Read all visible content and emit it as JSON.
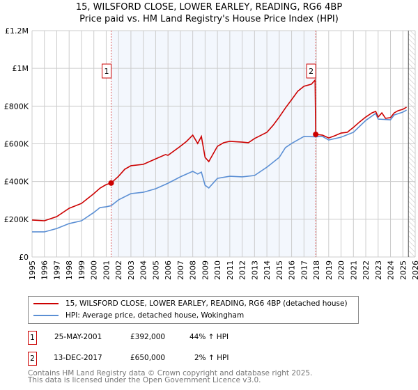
{
  "chart_data": {
    "type": "line",
    "title": "15, WILSFORD CLOSE, LOWER EARLEY, READING, RG6 4BP",
    "subtitle": "Price paid vs. HM Land Registry's House Price Index (HPI)",
    "xlim": [
      1995,
      2026
    ],
    "ylim": [
      0,
      1200000
    ],
    "x_ticks": [
      "1995",
      "1996",
      "1997",
      "1998",
      "1999",
      "2000",
      "2001",
      "2002",
      "2003",
      "2004",
      "2005",
      "2006",
      "2007",
      "2008",
      "2009",
      "2010",
      "2011",
      "2012",
      "2013",
      "2014",
      "2015",
      "2016",
      "2017",
      "2018",
      "2019",
      "2020",
      "2021",
      "2022",
      "2023",
      "2024",
      "2025",
      "2026"
    ],
    "y_ticks": [
      {
        "v": 0,
        "label": "£0"
      },
      {
        "v": 200000,
        "label": "£200K"
      },
      {
        "v": 400000,
        "label": "£400K"
      },
      {
        "v": 600000,
        "label": "£600K"
      },
      {
        "v": 800000,
        "label": "£800K"
      },
      {
        "v": 1000000,
        "label": "£1M"
      },
      {
        "v": 1200000,
        "label": "£1.2M"
      }
    ],
    "grid": true,
    "shaded_range": [
      2001.4,
      2017.95
    ],
    "hatched_from": 2025.45,
    "series": [
      {
        "name": "15, WILSFORD CLOSE, LOWER EARLEY, READING, RG6 4BP (detached house)",
        "color": "#cc0000",
        "x": [
          1995,
          1996,
          1997,
          1998,
          1999,
          2000,
          2000.5,
          2001,
          2001.4,
          2002,
          2002.5,
          2003,
          2004,
          2005,
          2005.8,
          2006,
          2007,
          2007.5,
          2008,
          2008.4,
          2008.7,
          2009,
          2009.3,
          2010,
          2010.5,
          2011,
          2012,
          2012.5,
          2013,
          2014,
          2014.5,
          2015,
          2015.5,
          2016,
          2016.5,
          2017,
          2017.6,
          2017.9,
          2017.95,
          2018.5,
          2019,
          2019.5,
          2020,
          2020.5,
          2021,
          2021.5,
          2022,
          2022.5,
          2022.8,
          2023,
          2023.3,
          2023.6,
          2024,
          2024.3,
          2024.6,
          2025,
          2025.3
        ],
        "y": [
          196000,
          192000,
          214000,
          258000,
          284000,
          336000,
          365000,
          384000,
          392000,
          428000,
          465000,
          484000,
          491000,
          520000,
          543000,
          539000,
          587000,
          613000,
          646000,
          602000,
          639000,
          528000,
          506000,
          587000,
          606000,
          613000,
          609000,
          606000,
          628000,
          661000,
          698000,
          742000,
          790000,
          834000,
          879000,
          905000,
          916000,
          938000,
          650000,
          646000,
          631000,
          643000,
          657000,
          661000,
          687000,
          716000,
          742000,
          764000,
          772000,
          742000,
          764000,
          735000,
          739000,
          764000,
          775000,
          783000,
          794000
        ]
      },
      {
        "name": "HPI: Average price, detached house, Wokingham",
        "color": "#5b8fd4",
        "x": [
          1995,
          1996,
          1997,
          1998,
          1999,
          2000,
          2000.5,
          2001,
          2001.4,
          2002,
          2003,
          2004,
          2005,
          2006,
          2007,
          2008,
          2008.4,
          2008.7,
          2009,
          2009.3,
          2010,
          2011,
          2012,
          2013,
          2014,
          2015,
          2015.5,
          2016,
          2017,
          2017.95,
          2018.5,
          2019,
          2020,
          2021,
          2022,
          2022.8,
          2023,
          2024,
          2024.3,
          2025,
          2025.3
        ],
        "y": [
          133000,
          133000,
          151000,
          177000,
          192000,
          236000,
          262000,
          266000,
          272000,
          303000,
          336000,
          343000,
          362000,
          391000,
          425000,
          454000,
          440000,
          450000,
          380000,
          366000,
          417000,
          428000,
          425000,
          432000,
          476000,
          528000,
          580000,
          602000,
          639000,
          637000,
          639000,
          620000,
          635000,
          661000,
          724000,
          761000,
          731000,
          727000,
          753000,
          768000,
          779000
        ]
      }
    ],
    "annotations": [
      {
        "label": "1",
        "x": 2001.4,
        "y": 392000,
        "date": "25-MAY-2001",
        "price": "£392,000",
        "hpi": "44% ↑ HPI"
      },
      {
        "label": "2",
        "x": 2017.95,
        "y": 650000,
        "date": "13-DEC-2017",
        "price": "£650,000",
        "hpi": "2% ↑ HPI"
      }
    ]
  },
  "footer": {
    "line1": "Contains HM Land Registry data © Crown copyright and database right 2025.",
    "line2": "This data is licensed under the Open Government Licence v3.0."
  }
}
